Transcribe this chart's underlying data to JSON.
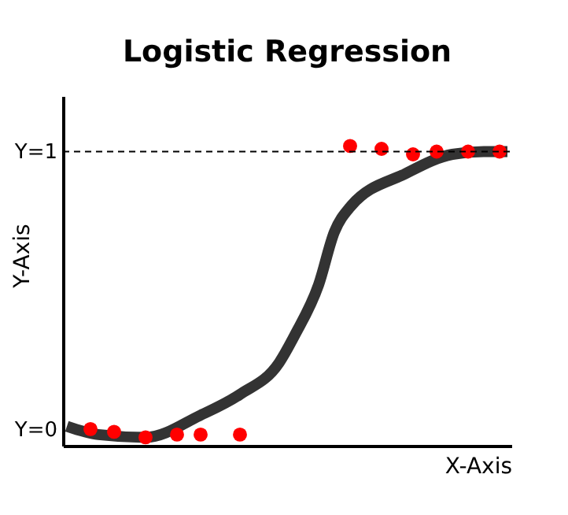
{
  "chart_data": {
    "type": "line",
    "title": "Logistic Regression",
    "xlabel": "X-Axis",
    "ylabel": "Y-Axis",
    "categories": [
      null,
      null,
      null,
      null,
      null,
      null,
      null,
      null,
      null,
      null,
      null,
      null,
      null,
      null,
      null,
      null,
      null,
      null,
      null,
      null,
      null,
      null,
      null,
      null,
      null,
      null,
      null,
      null,
      null,
      null,
      null,
      null,
      null,
      null,
      null,
      null,
      null,
      null,
      null,
      null,
      null,
      null,
      null,
      null,
      null,
      null,
      null,
      null,
      null,
      null,
      null,
      null,
      null,
      null,
      null,
      null,
      null
    ],
    "ylim": [
      -0.06,
      1.2
    ],
    "yticks": [
      {
        "value": 0,
        "label": "Y=0"
      },
      {
        "value": 1,
        "label": "Y=1"
      }
    ],
    "tick_labels": "y",
    "grid": false,
    "ref_lines": [
      {
        "axis": "y",
        "value": 1,
        "label": null,
        "color": "#000000",
        "line_style": "dashed"
      }
    ],
    "series": [
      {
        "color": "#333333",
        "marker": "none",
        "line_style": "solid",
        "values": [
          0.01,
          null,
          null,
          null,
          -0.02,
          null,
          null,
          null,
          null,
          null,
          -0.03,
          null,
          null,
          null,
          null,
          null,
          null,
          0.05,
          null,
          null,
          null,
          null,
          0.125,
          null,
          null,
          null,
          null,
          0.24,
          null,
          0.34,
          null,
          null,
          0.52,
          null,
          0.71,
          null,
          0.8,
          null,
          null,
          null,
          null,
          null,
          null,
          0.92,
          null,
          null,
          null,
          null,
          null,
          0.99,
          null,
          null,
          null,
          1.0,
          null,
          null,
          1.0
        ]
      },
      {
        "type": "scatter",
        "color": "#ff0000",
        "marker": "circle",
        "values": [
          null,
          null,
          null,
          0.0,
          null,
          null,
          -0.01,
          null,
          null,
          null,
          -0.03,
          null,
          null,
          null,
          -0.02,
          null,
          null,
          -0.02,
          null,
          null,
          null,
          null,
          -0.02,
          null,
          null,
          null,
          null,
          null,
          null,
          null,
          null,
          null,
          null,
          null,
          null,
          null,
          1.02,
          null,
          null,
          null,
          1.01,
          null,
          null,
          null,
          0.99,
          null,
          null,
          1.0,
          null,
          null,
          null,
          1.0,
          null,
          null,
          null,
          1.0,
          null
        ]
      }
    ]
  }
}
